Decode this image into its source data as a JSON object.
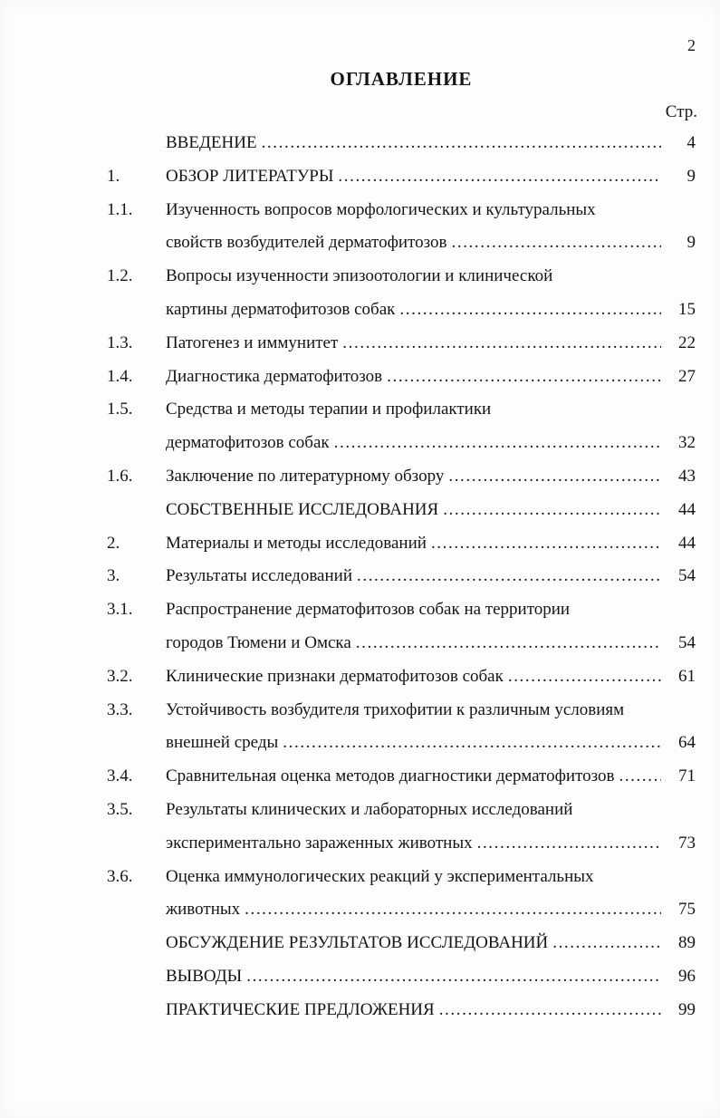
{
  "page": {
    "page_number": "2",
    "title": "ОГЛАВЛЕНИЕ",
    "column_header": "Стр.",
    "colors": {
      "background": "#fdfdfd",
      "text": "#151515"
    },
    "entries": [
      {
        "num": "",
        "lines": [
          "ВВЕДЕНИЕ"
        ],
        "page": "4"
      },
      {
        "num": "1.",
        "lines": [
          "ОБЗОР ЛИТЕРАТУРЫ"
        ],
        "page": "9"
      },
      {
        "num": "1.1.",
        "lines": [
          "Изученность вопросов морфологических и культуральных",
          "свойств возбудителей дерматофитозов"
        ],
        "page": "9"
      },
      {
        "num": "1.2.",
        "lines": [
          "Вопросы изученности эпизоотологии и клинической",
          "картины дерматофитозов собак"
        ],
        "page": "15"
      },
      {
        "num": "1.3.",
        "lines": [
          "Патогенез и иммунитет"
        ],
        "page": "22"
      },
      {
        "num": "1.4.",
        "lines": [
          "Диагностика дерматофитозов"
        ],
        "page": "27"
      },
      {
        "num": "1.5.",
        "lines": [
          "Средства и методы терапии и профилактики",
          "дерматофитозов собак"
        ],
        "page": "32"
      },
      {
        "num": "1.6.",
        "lines": [
          "Заключение по литературному обзору"
        ],
        "page": "43"
      },
      {
        "num": "",
        "lines": [
          "СОБСТВЕННЫЕ ИССЛЕДОВАНИЯ"
        ],
        "page": "44"
      },
      {
        "num": "2.",
        "lines": [
          "Материалы и методы исследований"
        ],
        "page": "44"
      },
      {
        "num": "3.",
        "lines": [
          "Результаты исследований"
        ],
        "page": "54"
      },
      {
        "num": "3.1.",
        "lines": [
          "Распространение дерматофитозов собак на территории",
          "городов Тюмени и Омска"
        ],
        "page": "54"
      },
      {
        "num": "3.2.",
        "lines": [
          "Клинические признаки дерматофитозов собак"
        ],
        "page": "61"
      },
      {
        "num": "3.3.",
        "lines": [
          "Устойчивость возбудителя трихофитии к различным условиям",
          "внешней среды"
        ],
        "page": "64"
      },
      {
        "num": "3.4.",
        "lines": [
          "Сравнительная оценка методов диагностики дерматофитозов"
        ],
        "page": "71"
      },
      {
        "num": "3.5.",
        "lines": [
          "Результаты клинических и лабораторных исследований",
          "экспериментально зараженных животных"
        ],
        "page": "73"
      },
      {
        "num": "3.6.",
        "lines": [
          "Оценка иммунологических реакций у экспериментальных",
          "животных"
        ],
        "page": "75"
      },
      {
        "num": "",
        "lines": [
          "ОБСУЖДЕНИЕ РЕЗУЛЬТАТОВ ИССЛЕДОВАНИЙ"
        ],
        "page": "89"
      },
      {
        "num": "",
        "lines": [
          "ВЫВОДЫ"
        ],
        "page": "96"
      },
      {
        "num": "",
        "lines": [
          "ПРАКТИЧЕСКИЕ ПРЕДЛОЖЕНИЯ"
        ],
        "page": "99"
      }
    ]
  }
}
